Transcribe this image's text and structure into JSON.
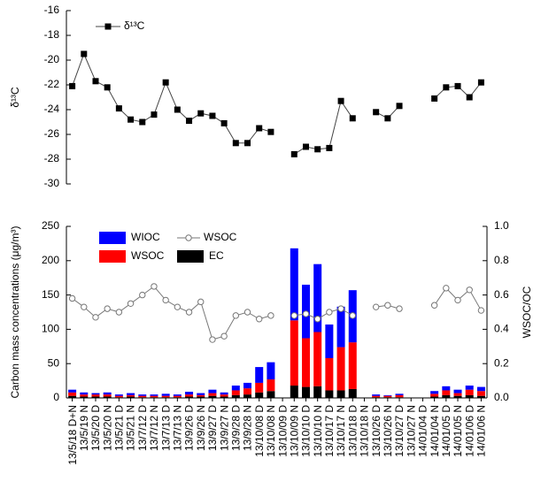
{
  "chart_data": [
    {
      "type": "line",
      "ylabel": "δ¹³C",
      "ylim": [
        -30,
        -16
      ],
      "yticks": [
        -30,
        -28,
        -26,
        -24,
        -22,
        -20,
        -18,
        -16
      ],
      "legend": "upper left",
      "series": [
        {
          "name": "δ¹³C",
          "color": "#000000",
          "values": [
            -22.1,
            -19.5,
            -21.7,
            -22.2,
            -23.9,
            -24.8,
            -25.0,
            -24.4,
            -21.8,
            -24.0,
            -24.9,
            -24.3,
            -24.5,
            -25.1,
            -26.7,
            -26.7,
            -25.5,
            -25.8,
            null,
            -27.6,
            -27.0,
            -27.2,
            -27.1,
            -23.3,
            -24.7,
            null,
            -24.2,
            -24.7,
            -23.7,
            null,
            null,
            -23.1,
            -22.2,
            -22.1,
            -23.0,
            -21.8
          ]
        }
      ]
    },
    {
      "type": "stacked_bar",
      "ylabel": "Carbon mass concentrations (μg/m³)",
      "y2label": "WSOC/OC",
      "categories": [
        "13/5/18 D+N",
        "13/5/19 N",
        "13/5/20 D",
        "13/5/20 N",
        "13/5/21 D",
        "13/5/21 N",
        "13/7/12 D",
        "13/7/12 N",
        "13/7/13 D",
        "13/7/13 N",
        "13/9/26 D",
        "13/9/26 N",
        "13/9/27 D",
        "13/9/27 N",
        "13/9/28 D",
        "13/9/28 N",
        "13/10/08 D",
        "13/10/08 N",
        "13/10/09 D",
        "13/10/09 N",
        "13/10/10 D",
        "13/10/10 N",
        "13/10/17 D",
        "13/10/17 N",
        "13/10/18 D",
        "13/10/18 N",
        "13/10/26 D",
        "13/10/26 N",
        "13/10/27 D",
        "13/10/27 N",
        "14/01/04 D",
        "14/01/04 N",
        "14/01/05 D",
        "14/01/05 N",
        "14/01/06 D",
        "14/01/06 N"
      ],
      "ylim": [
        0,
        250
      ],
      "yticks": [
        0,
        50,
        100,
        150,
        200,
        250
      ],
      "y2lim": [
        0,
        1
      ],
      "y2ticks": [
        {
          "value": 0,
          "label": "0.0"
        },
        0.2,
        0.4,
        0.6,
        0.8,
        {
          "value": 1,
          "label": "1.0"
        }
      ],
      "legend": "upper left",
      "series": [
        {
          "name": "EC",
          "color": "#000000",
          "values": [
            3,
            2,
            2,
            2,
            1,
            2,
            1,
            1,
            1,
            1,
            2,
            2,
            3,
            2,
            4,
            5,
            8,
            10,
            null,
            18,
            16,
            17,
            11,
            11,
            13,
            null,
            1,
            1,
            1,
            null,
            null,
            2,
            4,
            3,
            4,
            3
          ]
        },
        {
          "name": "WSOC",
          "color": "#ff0000",
          "values": [
            5,
            3,
            3,
            3,
            2,
            2,
            2,
            2,
            2,
            2,
            3,
            2,
            4,
            3,
            7,
            9,
            14,
            17,
            null,
            95,
            71,
            79,
            47,
            63,
            68,
            null,
            2,
            2,
            3,
            null,
            null,
            4,
            7,
            4,
            8,
            7
          ]
        },
        {
          "name": "WIOC",
          "color": "#0000ff",
          "values": [
            4,
            3,
            2,
            3,
            2,
            3,
            2,
            2,
            3,
            2,
            4,
            3,
            5,
            3,
            7,
            8,
            23,
            25,
            null,
            105,
            78,
            99,
            49,
            59,
            76,
            null,
            2,
            1,
            2,
            null,
            null,
            4,
            6,
            5,
            6,
            6
          ]
        },
        {
          "name": "WSOC",
          "color": "#777777",
          "axis": "y2",
          "line": true,
          "values": [
            0.58,
            0.53,
            0.47,
            0.52,
            0.5,
            0.55,
            0.6,
            0.65,
            0.57,
            0.53,
            0.5,
            0.56,
            0.34,
            0.36,
            0.48,
            0.5,
            0.46,
            0.48,
            null,
            0.48,
            0.49,
            0.46,
            0.5,
            0.52,
            0.48,
            null,
            0.53,
            0.54,
            0.52,
            null,
            null,
            0.54,
            0.64,
            0.57,
            0.63,
            0.51
          ]
        }
      ]
    }
  ]
}
